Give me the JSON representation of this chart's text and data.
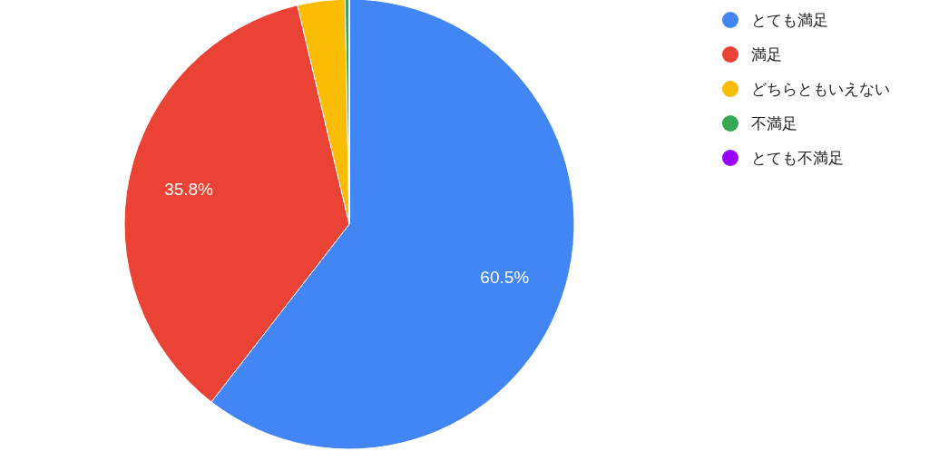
{
  "chart_data": {
    "type": "pie",
    "categories": [
      "とても満足",
      "満足",
      "どちらともいえない",
      "不満足",
      "とても不満足"
    ],
    "values": [
      60.5,
      35.8,
      3.4,
      0.3,
      0
    ],
    "colors": [
      "#4285f4",
      "#ea4335",
      "#fbbc04",
      "#34a853",
      "#9900ff"
    ],
    "value_labels": [
      "60.5%",
      "35.8%",
      null,
      null,
      null
    ],
    "legend": "right"
  }
}
